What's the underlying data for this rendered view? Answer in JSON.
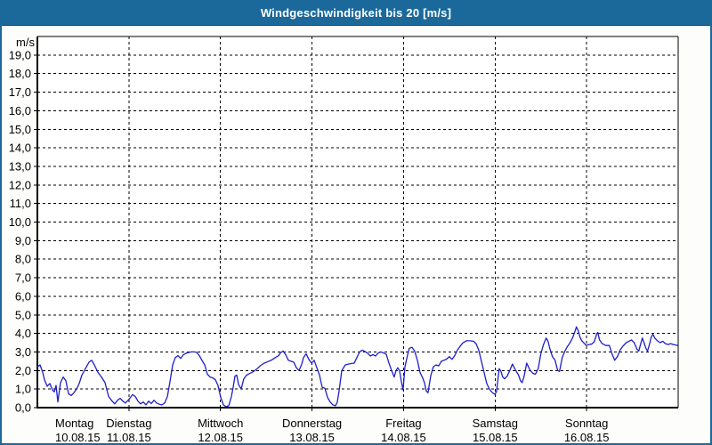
{
  "window": {
    "title": "Windgeschwindigkeit bis 20 [m/s]"
  },
  "colors": {
    "titlebar_bg": "#1B689B",
    "titlebar_text": "#FFFFFF",
    "window_border": "#1B689B",
    "plot_bg": "#FFFFFF",
    "grid": "#000000",
    "axis": "#000000",
    "text": "#000000",
    "line": "#1E1EC8"
  },
  "chart_data": {
    "type": "line",
    "title": "Windgeschwindigkeit bis 20 [m/s]",
    "unit_label": "m/s",
    "ylim": [
      0,
      20
    ],
    "ytick_labels": [
      "0,0",
      "1,0",
      "2,0",
      "3,0",
      "4,0",
      "5,0",
      "6,0",
      "7,0",
      "8,0",
      "9,0",
      "10,0",
      "11,0",
      "12,0",
      "13,0",
      "14,0",
      "15,0",
      "16,0",
      "17,0",
      "18,0",
      "19,0"
    ],
    "grid": "dashed",
    "legend": "none",
    "x_axis": {
      "unit": "days",
      "days": [
        {
          "name": "Montag",
          "date": "10.08.15"
        },
        {
          "name": "Dienstag",
          "date": "11.08.15"
        },
        {
          "name": "Mittwoch",
          "date": "12.08.15"
        },
        {
          "name": "Donnerstag",
          "date": "13.08.15"
        },
        {
          "name": "Freitag",
          "date": "14.08.15"
        },
        {
          "name": "Samstag",
          "date": "15.08.15"
        },
        {
          "name": "Sonntag",
          "date": "16.08.15"
        }
      ]
    },
    "series": [
      {
        "name": "Windgeschwindigkeit",
        "color": "#1E1EC8",
        "points": [
          [
            0.0,
            2.2
          ],
          [
            0.029,
            2.3
          ],
          [
            0.058,
            1.9
          ],
          [
            0.078,
            1.5
          ],
          [
            0.107,
            1.15
          ],
          [
            0.136,
            1.3
          ],
          [
            0.165,
            0.95
          ],
          [
            0.185,
            0.85
          ],
          [
            0.204,
            1.2
          ],
          [
            0.224,
            0.3
          ],
          [
            0.253,
            1.35
          ],
          [
            0.282,
            1.65
          ],
          [
            0.311,
            1.45
          ],
          [
            0.34,
            0.75
          ],
          [
            0.369,
            0.65
          ],
          [
            0.399,
            0.8
          ],
          [
            0.428,
            1.0
          ],
          [
            0.457,
            1.3
          ],
          [
            0.486,
            1.75
          ],
          [
            0.525,
            2.1
          ],
          [
            0.564,
            2.45
          ],
          [
            0.593,
            2.55
          ],
          [
            0.622,
            2.3
          ],
          [
            0.661,
            1.9
          ],
          [
            0.7,
            1.65
          ],
          [
            0.739,
            1.35
          ],
          [
            0.778,
            0.6
          ],
          [
            0.817,
            0.35
          ],
          [
            0.846,
            0.2
          ],
          [
            0.875,
            0.4
          ],
          [
            0.904,
            0.5
          ],
          [
            0.933,
            0.35
          ],
          [
            0.962,
            0.25
          ],
          [
            1.001,
            0.45
          ],
          [
            1.04,
            0.7
          ],
          [
            1.069,
            0.6
          ],
          [
            1.099,
            0.35
          ],
          [
            1.128,
            0.2
          ],
          [
            1.157,
            0.3
          ],
          [
            1.186,
            0.15
          ],
          [
            1.215,
            0.35
          ],
          [
            1.245,
            0.22
          ],
          [
            1.274,
            0.4
          ],
          [
            1.303,
            0.25
          ],
          [
            1.332,
            0.18
          ],
          [
            1.361,
            0.15
          ],
          [
            1.39,
            0.25
          ],
          [
            1.42,
            0.6
          ],
          [
            1.449,
            1.4
          ],
          [
            1.478,
            2.3
          ],
          [
            1.507,
            2.7
          ],
          [
            1.536,
            2.8
          ],
          [
            1.565,
            2.65
          ],
          [
            1.594,
            2.85
          ],
          [
            1.633,
            2.95
          ],
          [
            1.682,
            3.0
          ],
          [
            1.711,
            3.0
          ],
          [
            1.74,
            2.98
          ],
          [
            1.769,
            2.8
          ],
          [
            1.798,
            2.55
          ],
          [
            1.828,
            2.3
          ],
          [
            1.857,
            1.8
          ],
          [
            1.886,
            1.65
          ],
          [
            1.915,
            1.6
          ],
          [
            1.944,
            1.5
          ],
          [
            1.973,
            1.2
          ],
          [
            2.003,
            0.55
          ],
          [
            2.032,
            0.15
          ],
          [
            2.061,
            0.05
          ],
          [
            2.09,
            0.1
          ],
          [
            2.119,
            0.6
          ],
          [
            2.139,
            1.1
          ],
          [
            2.158,
            1.7
          ],
          [
            2.178,
            1.75
          ],
          [
            2.197,
            1.25
          ],
          [
            2.226,
            1.0
          ],
          [
            2.255,
            1.55
          ],
          [
            2.285,
            1.75
          ],
          [
            2.324,
            1.85
          ],
          [
            2.363,
            1.95
          ],
          [
            2.401,
            2.1
          ],
          [
            2.44,
            2.28
          ],
          [
            2.479,
            2.4
          ],
          [
            2.518,
            2.48
          ],
          [
            2.557,
            2.56
          ],
          [
            2.596,
            2.68
          ],
          [
            2.635,
            2.8
          ],
          [
            2.654,
            2.95
          ],
          [
            2.684,
            3.05
          ],
          [
            2.713,
            2.85
          ],
          [
            2.742,
            2.55
          ],
          [
            2.771,
            2.5
          ],
          [
            2.8,
            2.45
          ],
          [
            2.829,
            2.15
          ],
          [
            2.858,
            2.0
          ],
          [
            2.888,
            2.35
          ],
          [
            2.907,
            2.7
          ],
          [
            2.936,
            2.9
          ],
          [
            2.965,
            2.6
          ],
          [
            2.995,
            2.4
          ],
          [
            3.024,
            2.55
          ],
          [
            3.053,
            2.15
          ],
          [
            3.082,
            1.75
          ],
          [
            3.111,
            1.1
          ],
          [
            3.14,
            1.05
          ],
          [
            3.169,
            0.55
          ],
          [
            3.199,
            0.3
          ],
          [
            3.228,
            0.15
          ],
          [
            3.257,
            0.1
          ],
          [
            3.276,
            0.3
          ],
          [
            3.296,
            0.9
          ],
          [
            3.325,
            2.0
          ],
          [
            3.364,
            2.3
          ],
          [
            3.403,
            2.35
          ],
          [
            3.432,
            2.38
          ],
          [
            3.461,
            2.4
          ],
          [
            3.49,
            2.7
          ],
          [
            3.519,
            3.0
          ],
          [
            3.549,
            3.1
          ],
          [
            3.578,
            3.02
          ],
          [
            3.607,
            2.94
          ],
          [
            3.636,
            2.78
          ],
          [
            3.665,
            2.86
          ],
          [
            3.694,
            2.78
          ],
          [
            3.723,
            2.94
          ],
          [
            3.753,
            3.0
          ],
          [
            3.782,
            2.94
          ],
          [
            3.811,
            2.88
          ],
          [
            3.84,
            2.4
          ],
          [
            3.869,
            2.0
          ],
          [
            3.898,
            1.65
          ],
          [
            3.918,
            2.0
          ],
          [
            3.937,
            2.15
          ],
          [
            3.956,
            2.0
          ],
          [
            3.976,
            1.4
          ],
          [
            3.995,
            0.95
          ],
          [
            4.015,
            2.2
          ],
          [
            4.044,
            2.85
          ],
          [
            4.063,
            3.2
          ],
          [
            4.092,
            3.25
          ],
          [
            4.121,
            3.05
          ],
          [
            4.151,
            2.55
          ],
          [
            4.18,
            1.9
          ],
          [
            4.209,
            1.6
          ],
          [
            4.228,
            1.35
          ],
          [
            4.248,
            0.9
          ],
          [
            4.267,
            0.8
          ],
          [
            4.296,
            1.7
          ],
          [
            4.325,
            2.2
          ],
          [
            4.355,
            2.3
          ],
          [
            4.384,
            2.25
          ],
          [
            4.413,
            2.5
          ],
          [
            4.442,
            2.55
          ],
          [
            4.471,
            2.62
          ],
          [
            4.5,
            2.75
          ],
          [
            4.53,
            2.6
          ],
          [
            4.559,
            2.8
          ],
          [
            4.588,
            3.1
          ],
          [
            4.617,
            3.3
          ],
          [
            4.646,
            3.48
          ],
          [
            4.686,
            3.6
          ],
          [
            4.724,
            3.6
          ],
          [
            4.763,
            3.58
          ],
          [
            4.792,
            3.45
          ],
          [
            4.821,
            3.1
          ],
          [
            4.85,
            2.5
          ],
          [
            4.88,
            1.9
          ],
          [
            4.909,
            1.3
          ],
          [
            4.938,
            1.0
          ],
          [
            4.967,
            0.82
          ],
          [
            4.996,
            0.72
          ],
          [
            5.015,
            0.85
          ],
          [
            5.045,
            2.1
          ],
          [
            5.064,
            1.95
          ],
          [
            5.083,
            1.65
          ],
          [
            5.103,
            1.55
          ],
          [
            5.132,
            1.7
          ],
          [
            5.161,
            2.0
          ],
          [
            5.19,
            2.35
          ],
          [
            5.209,
            2.15
          ],
          [
            5.238,
            1.9
          ],
          [
            5.257,
            1.75
          ],
          [
            5.277,
            1.45
          ],
          [
            5.296,
            1.35
          ],
          [
            5.315,
            1.65
          ],
          [
            5.345,
            2.4
          ],
          [
            5.364,
            2.2
          ],
          [
            5.383,
            2.0
          ],
          [
            5.412,
            1.85
          ],
          [
            5.441,
            1.8
          ],
          [
            5.471,
            2.1
          ],
          [
            5.5,
            2.9
          ],
          [
            5.529,
            3.4
          ],
          [
            5.558,
            3.75
          ],
          [
            5.577,
            3.6
          ],
          [
            5.597,
            3.2
          ],
          [
            5.626,
            2.75
          ],
          [
            5.655,
            2.55
          ],
          [
            5.684,
            2.0
          ],
          [
            5.704,
            1.95
          ],
          [
            5.733,
            2.7
          ],
          [
            5.762,
            3.05
          ],
          [
            5.791,
            3.3
          ],
          [
            5.82,
            3.5
          ],
          [
            5.85,
            3.8
          ],
          [
            5.879,
            4.2
          ],
          [
            5.888,
            4.35
          ],
          [
            5.908,
            4.15
          ],
          [
            5.927,
            3.8
          ],
          [
            5.947,
            3.6
          ],
          [
            5.976,
            3.45
          ],
          [
            5.995,
            3.35
          ],
          [
            6.024,
            3.4
          ],
          [
            6.054,
            3.42
          ],
          [
            6.083,
            3.55
          ],
          [
            6.112,
            4.0
          ],
          [
            6.122,
            4.05
          ],
          [
            6.141,
            3.65
          ],
          [
            6.17,
            3.45
          ],
          [
            6.209,
            3.35
          ],
          [
            6.248,
            3.35
          ],
          [
            6.277,
            2.9
          ],
          [
            6.306,
            2.55
          ],
          [
            6.336,
            2.75
          ],
          [
            6.365,
            3.1
          ],
          [
            6.394,
            3.3
          ],
          [
            6.433,
            3.5
          ],
          [
            6.462,
            3.58
          ],
          [
            6.491,
            3.65
          ],
          [
            6.52,
            3.5
          ],
          [
            6.55,
            3.15
          ],
          [
            6.569,
            3.05
          ],
          [
            6.589,
            3.4
          ],
          [
            6.608,
            3.75
          ],
          [
            6.627,
            3.5
          ],
          [
            6.647,
            3.2
          ],
          [
            6.666,
            3.05
          ],
          [
            6.686,
            3.4
          ],
          [
            6.705,
            3.8
          ],
          [
            6.724,
            3.95
          ],
          [
            6.744,
            3.75
          ],
          [
            6.773,
            3.6
          ],
          [
            6.802,
            3.5
          ],
          [
            6.831,
            3.58
          ],
          [
            6.86,
            3.45
          ],
          [
            6.889,
            3.4
          ],
          [
            6.918,
            3.45
          ],
          [
            6.947,
            3.4
          ],
          [
            6.976,
            3.37
          ],
          [
            6.996,
            3.35
          ]
        ]
      }
    ]
  }
}
